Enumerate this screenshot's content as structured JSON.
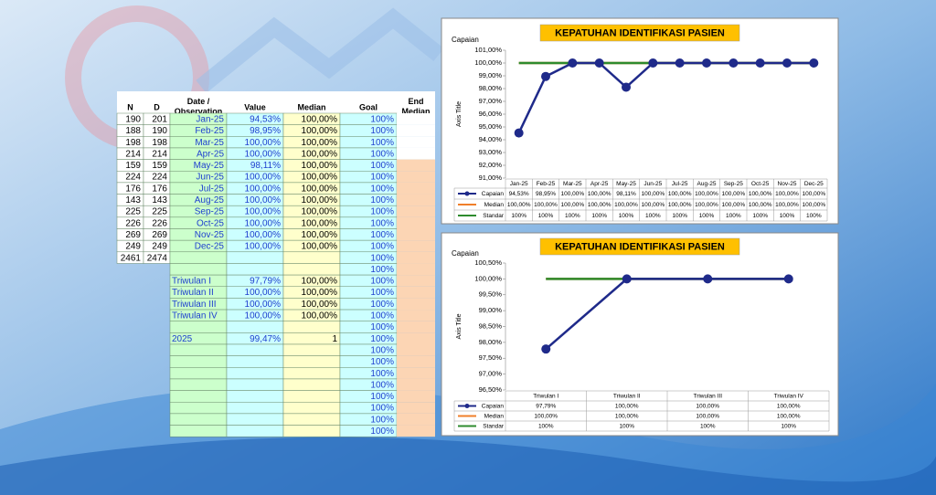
{
  "table": {
    "columns": [
      "N",
      "D",
      "Date / Observation",
      "Value",
      "Median",
      "Goal",
      "End Median"
    ],
    "rows": [
      [
        "190",
        "201",
        "Jan-25",
        "94,53%",
        "100,00%",
        "100%",
        null
      ],
      [
        "188",
        "190",
        "Feb-25",
        "98,95%",
        "100,00%",
        "100%",
        null
      ],
      [
        "198",
        "198",
        "Mar-25",
        "100,00%",
        "100,00%",
        "100%",
        null
      ],
      [
        "214",
        "214",
        "Apr-25",
        "100,00%",
        "100,00%",
        "100%",
        null
      ],
      [
        "159",
        "159",
        "May-25",
        "98,11%",
        "100,00%",
        "100%",
        null
      ],
      [
        "224",
        "224",
        "Jun-25",
        "100,00%",
        "100,00%",
        "100%",
        null
      ],
      [
        "176",
        "176",
        "Jul-25",
        "100,00%",
        "100,00%",
        "100%",
        null
      ],
      [
        "143",
        "143",
        "Aug-25",
        "100,00%",
        "100,00%",
        "100%",
        null
      ],
      [
        "225",
        "225",
        "Sep-25",
        "100,00%",
        "100,00%",
        "100%",
        null
      ],
      [
        "226",
        "226",
        "Oct-25",
        "100,00%",
        "100,00%",
        "100%",
        null
      ],
      [
        "269",
        "269",
        "Nov-25",
        "100,00%",
        "100,00%",
        "100%",
        null
      ],
      [
        "249",
        "249",
        "Dec-25",
        "100,00%",
        "100,00%",
        "100%",
        null
      ],
      [
        "2461",
        "2474",
        null,
        null,
        null,
        "100%",
        null
      ],
      [
        null,
        null,
        null,
        null,
        null,
        "100%",
        null
      ],
      [
        null,
        null,
        "Triwulan I",
        "97,79%",
        "100,00%",
        "100%",
        null
      ],
      [
        null,
        null,
        "Triwulan II",
        "100,00%",
        "100,00%",
        "100%",
        null
      ],
      [
        null,
        null,
        "Triwulan III",
        "100,00%",
        "100,00%",
        "100%",
        null
      ],
      [
        null,
        null,
        "Triwulan IV",
        "100,00%",
        "100,00%",
        "100%",
        null
      ],
      [
        null,
        null,
        null,
        null,
        null,
        "100%",
        null
      ],
      [
        null,
        null,
        "2025",
        "99,47%",
        "1",
        "100%",
        null
      ],
      [
        null,
        null,
        null,
        null,
        null,
        "100%",
        null
      ],
      [
        null,
        null,
        null,
        null,
        null,
        "100%",
        null
      ],
      [
        null,
        null,
        null,
        null,
        null,
        "100%",
        null
      ],
      [
        null,
        null,
        null,
        null,
        null,
        "100%",
        null
      ],
      [
        null,
        null,
        null,
        null,
        null,
        "100%",
        null
      ],
      [
        null,
        null,
        null,
        null,
        null,
        "100%",
        null
      ],
      [
        null,
        null,
        null,
        null,
        null,
        "100%",
        null
      ],
      [
        null,
        null,
        null,
        null,
        null,
        "100%",
        null
      ]
    ]
  },
  "chart_data": [
    {
      "type": "line",
      "title": "KEPATUHAN IDENTIFIKASI PASIEN",
      "y_label": "Capaian",
      "axis_title": "Axis Title",
      "categories": [
        "Jan-25",
        "Feb-25",
        "Mar-25",
        "Apr-25",
        "May-25",
        "Jun-25",
        "Jul-25",
        "Aug-25",
        "Sep-25",
        "Oct-25",
        "Nov-25",
        "Dec-25"
      ],
      "ylim": [
        91,
        101
      ],
      "yticks": [
        {
          "value": 91,
          "label": "91,00%"
        },
        {
          "value": 92,
          "label": "92,00%"
        },
        {
          "value": 93,
          "label": "93,00%"
        },
        {
          "value": 94,
          "label": "94,00%"
        },
        {
          "value": 95,
          "label": "95,00%"
        },
        {
          "value": 96,
          "label": "96,00%"
        },
        {
          "value": 97,
          "label": "97,00%"
        },
        {
          "value": 98,
          "label": "98,00%"
        },
        {
          "value": 99,
          "label": "99,00%"
        },
        {
          "value": 100,
          "label": "100,00%"
        },
        {
          "value": 101,
          "label": "101,00%"
        }
      ],
      "series": [
        {
          "name": "Capaian",
          "color": "#1f2a8a",
          "values": [
            94.53,
            98.95,
            100,
            100,
            98.11,
            100,
            100,
            100,
            100,
            100,
            100,
            100
          ],
          "value_labels": [
            "94,53%",
            "98,95%",
            "100,00%",
            "100,00%",
            "98,11%",
            "100,00%",
            "100,00%",
            "100,00%",
            "100,00%",
            "100,00%",
            "100,00%",
            "100,00%"
          ]
        },
        {
          "name": "Median",
          "color": "#f07f2a",
          "values": [
            100,
            100,
            100,
            100,
            100,
            100,
            100,
            100,
            100,
            100,
            100,
            100
          ],
          "value_labels": [
            "100,00%",
            "100,00%",
            "100,00%",
            "100,00%",
            "100,00%",
            "100,00%",
            "100,00%",
            "100,00%",
            "100,00%",
            "100,00%",
            "100,00%",
            "100,00%"
          ]
        },
        {
          "name": "Standar",
          "color": "#2e8b2e",
          "values": [
            100,
            100,
            100,
            100,
            100,
            100,
            100,
            100,
            100,
            100,
            100,
            100
          ],
          "value_labels": [
            "100%",
            "100%",
            "100%",
            "100%",
            "100%",
            "100%",
            "100%",
            "100%",
            "100%",
            "100%",
            "100%",
            "100%"
          ]
        }
      ]
    },
    {
      "type": "line",
      "title": "KEPATUHAN IDENTIFIKASI PASIEN",
      "y_label": "Capaian",
      "axis_title": "Axis Title",
      "categories": [
        "Triwulan I",
        "Triwulan II",
        "Triwulan III",
        "Triwulan IV"
      ],
      "ylim": [
        96.5,
        100.5
      ],
      "yticks": [
        {
          "value": 96.5,
          "label": "96,50%"
        },
        {
          "value": 97,
          "label": "97,00%"
        },
        {
          "value": 97.5,
          "label": "97,50%"
        },
        {
          "value": 98,
          "label": "98,00%"
        },
        {
          "value": 98.5,
          "label": "98,50%"
        },
        {
          "value": 99,
          "label": "99,00%"
        },
        {
          "value": 99.5,
          "label": "99,50%"
        },
        {
          "value": 100,
          "label": "100,00%"
        },
        {
          "value": 100.5,
          "label": "100,50%"
        }
      ],
      "series": [
        {
          "name": "Capaian",
          "color": "#1f2a8a",
          "values": [
            97.79,
            100,
            100,
            100
          ],
          "value_labels": [
            "97,79%",
            "100,00%",
            "100,00%",
            "100,00%"
          ]
        },
        {
          "name": "Median",
          "color": "#f07f2a",
          "values": [
            100,
            100,
            100,
            100
          ],
          "value_labels": [
            "100,00%",
            "100,00%",
            "100,00%",
            "100,00%"
          ]
        },
        {
          "name": "Standar",
          "color": "#2e8b2e",
          "values": [
            100,
            100,
            100,
            100
          ],
          "value_labels": [
            "100%",
            "100%",
            "100%",
            "100%"
          ]
        }
      ]
    }
  ]
}
